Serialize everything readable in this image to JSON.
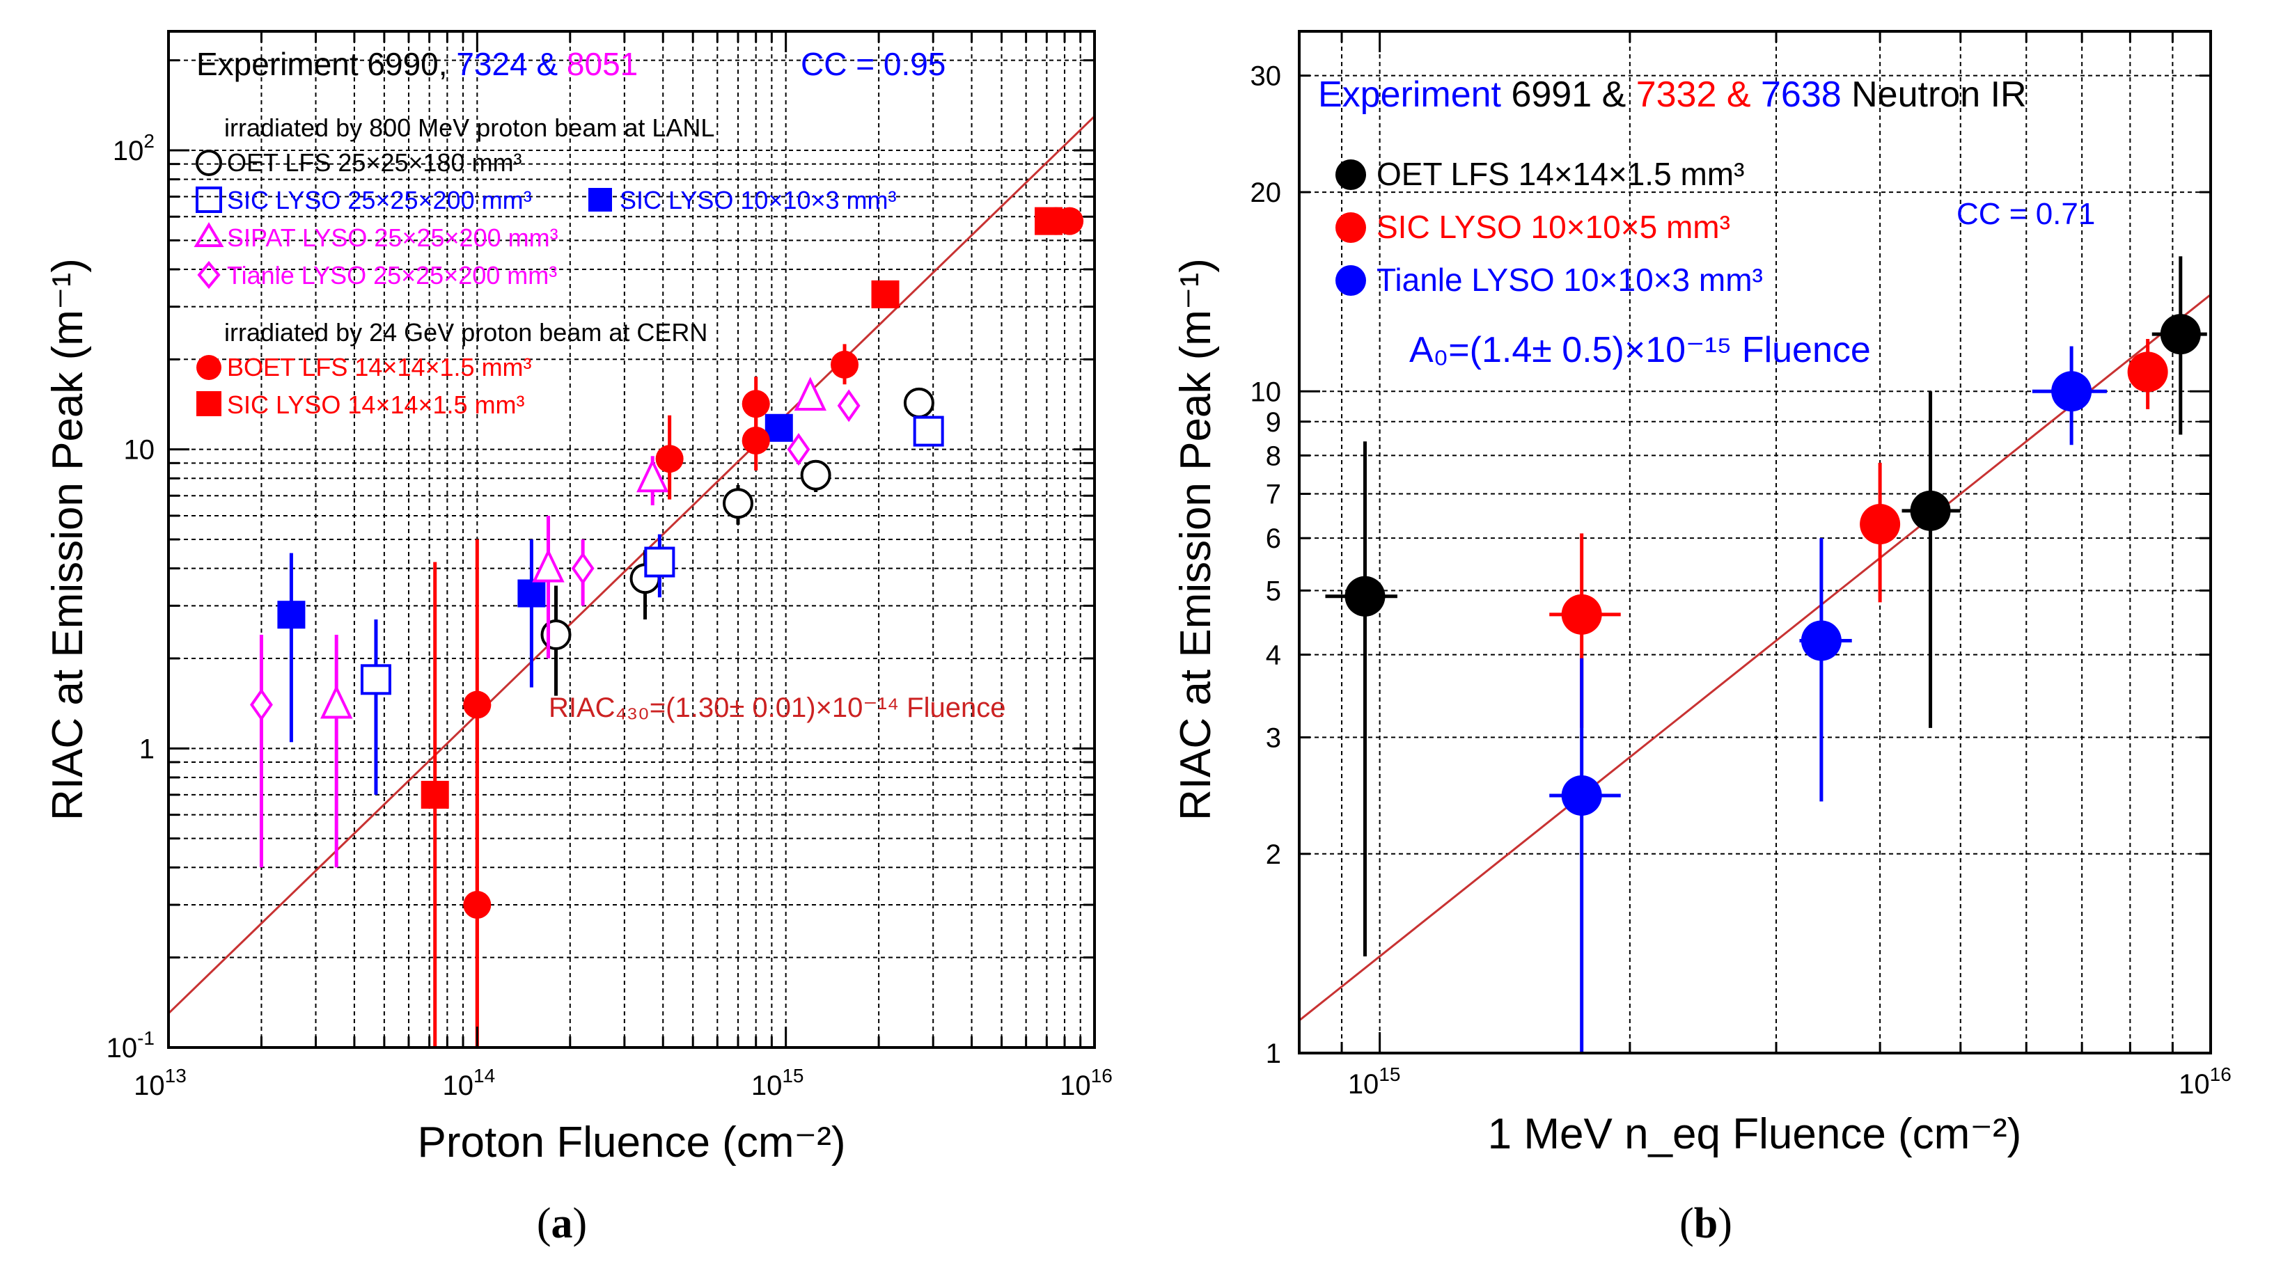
{
  "colors": {
    "black": "#000000",
    "red": "#ff0000",
    "blue": "#0000ff",
    "magenta": "#ff00ff",
    "fit_line": "#c83232",
    "dark_red": "#cc2222"
  },
  "panel_a": {
    "caption_letter": "a",
    "header": {
      "experiment": "Experiment 6990, ",
      "num2": "7324 & ",
      "num3": "8051",
      "cc": "CC = 0.95"
    },
    "section1": "irradiated by 800 MeV proton beam at LANL",
    "section2": "irradiated by 24 GeV proton beam at CERN",
    "legend": [
      {
        "marker": "circle-open",
        "color": "black",
        "label": "OET LFS  25×25×180 mm³"
      },
      {
        "marker": "square-open",
        "color": "blue",
        "label": "SIC LYSO  25×25×200 mm³"
      },
      {
        "marker": "square-filled",
        "color": "blue",
        "label": "SIC LYSO   10×10×3 mm³"
      },
      {
        "marker": "triangle-open",
        "color": "magenta",
        "label": "SIPAT LYSO  25×25×200 mm³"
      },
      {
        "marker": "diamond-open",
        "color": "magenta",
        "label": "Tianle LYSO  25×25×200 mm³"
      },
      {
        "marker": "circle-filled",
        "color": "red",
        "label": "BOET LFS  14×14×1.5 mm³"
      },
      {
        "marker": "square-filled",
        "color": "red",
        "label": "SIC LYSO   14×14×1.5 mm³"
      }
    ],
    "fit_label": "RIAC₄₃₀=(1.30± 0.01)×10⁻¹⁴ Fluence"
  },
  "panel_b": {
    "caption_letter": "b",
    "header": {
      "experiment": "Experiment ",
      "num1": "6991 & ",
      "num2": "7332 & ",
      "num3": "7638",
      "tail": "  Neutron IR"
    },
    "cc": "CC = 0.71",
    "legend": [
      {
        "marker": "circle-filled",
        "color": "black",
        "label": "OET LFS  14×14×1.5 mm³"
      },
      {
        "marker": "circle-filled",
        "color": "red",
        "label": "SIC LYSO  10×10×5 mm³"
      },
      {
        "marker": "circle-filled",
        "color": "blue",
        "label": "Tianle LYSO  10×10×3 mm³"
      }
    ],
    "fit_label": "A₀=(1.4± 0.5)×10⁻¹⁵ Fluence"
  },
  "chart_data": [
    {
      "type": "scatter",
      "xlabel": "Proton Fluence (cm⁻²)",
      "ylabel": "RIAC at Emission Peak (m⁻¹)",
      "x_scale": "log",
      "y_scale": "log",
      "xlim": [
        10000000000000.0,
        1e+16
      ],
      "ylim": [
        0.1,
        250
      ],
      "x_ticks": [
        "10¹³",
        "10¹⁴",
        "10¹⁵",
        "10¹⁶"
      ],
      "y_ticks": [
        "10⁻¹",
        "1",
        "10",
        "10²"
      ],
      "grid": true,
      "fit": {
        "slope": 1.3e-14,
        "color": "fit_line"
      },
      "series": [
        {
          "name": "OET LFS  25×25×180 mm³",
          "marker": "circle-open",
          "color": "black",
          "points": [
            [
              180000000000000.0,
              2.4,
              1.5,
              3.5
            ],
            [
              350000000000000.0,
              3.7,
              2.7,
              4.6
            ],
            [
              700000000000000.0,
              6.6,
              5.6,
              7.6
            ],
            [
              1250000000000000.0,
              8.2,
              7.2,
              9.2
            ],
            [
              2700000000000000.0,
              14.3,
              13.0,
              15.5
            ]
          ]
        },
        {
          "name": "SIC LYSO  25×25×200 mm³",
          "marker": "square-open",
          "color": "blue",
          "points": [
            [
              47000000000000.0,
              1.7,
              0.7,
              2.7
            ],
            [
              390000000000000.0,
              4.2,
              3.2,
              5.2
            ],
            [
              2900000000000000.0,
              11.5,
              10.5,
              12.5
            ]
          ]
        },
        {
          "name": "SIC LYSO   10×10×3 mm³",
          "marker": "square-filled",
          "color": "blue",
          "points": [
            [
              25000000000000.0,
              2.8,
              1.05,
              4.5
            ],
            [
              150000000000000.0,
              3.3,
              1.6,
              5.0
            ],
            [
              950000000000000.0,
              11.8,
              10.8,
              12.8
            ]
          ]
        },
        {
          "name": "SIPAT LYSO  25×25×200 mm³",
          "marker": "triangle-open",
          "color": "magenta",
          "points": [
            [
              35000000000000.0,
              1.4,
              0.4,
              2.4
            ],
            [
              170000000000000.0,
              4.0,
              2.0,
              6.0
            ],
            [
              370000000000000.0,
              8.0,
              6.5,
              9.5
            ],
            [
              1200000000000000.0,
              15.0,
              13.5,
              16.5
            ]
          ]
        },
        {
          "name": "Tianle LYSO  25×25×200 mm³",
          "marker": "diamond-open",
          "color": "magenta",
          "points": [
            [
              20000000000000.0,
              1.4,
              0.4,
              2.4
            ],
            [
              220000000000000.0,
              4.0,
              3.0,
              5.0
            ],
            [
              1100000000000000.0,
              10.0,
              9.0,
              11.0
            ],
            [
              1600000000000000.0,
              14.0,
              13.0,
              15.0
            ]
          ]
        },
        {
          "name": "BOET LFS  14×14×1.5 mm³",
          "marker": "circle-filled",
          "color": "red",
          "points": [
            [
              100000000000000.0,
              1.4,
              0.08,
              5.0
            ],
            [
              100000000000000.0,
              0.3,
              0.08,
              1.5
            ],
            [
              420000000000000.0,
              9.3,
              6.8,
              13.0
            ],
            [
              800000000000000.0,
              14.2,
              11.5,
              17.5
            ],
            [
              800000000000000.0,
              10.7,
              8.5,
              13.5
            ],
            [
              1550000000000000.0,
              19.2,
              16.5,
              22.5
            ],
            [
              7500000000000000.0,
              58.0,
              56.0,
              60.0
            ],
            [
              8300000000000000.0,
              58.0,
              56.0,
              60.0
            ]
          ]
        },
        {
          "name": "SIC LYSO   14×14×1.5 mm³",
          "marker": "square-filled",
          "color": "red",
          "points": [
            [
              73000000000000.0,
              0.7,
              0.08,
              4.2
            ],
            [
              2100000000000000.0,
              33.0,
              31.0,
              35.0
            ],
            [
              7100000000000000.0,
              58.0,
              56.0,
              60.0
            ]
          ]
        }
      ]
    },
    {
      "type": "scatter",
      "xlabel": "1 MeV n_eq Fluence (cm⁻²)",
      "ylabel": "RIAC at Emission Peak (m⁻¹)",
      "x_scale": "log",
      "y_scale": "log",
      "xlim": [
        800000000000000.0,
        1e+16
      ],
      "ylim": [
        1,
        35
      ],
      "x_ticks": [
        "10¹⁵",
        "10¹⁶"
      ],
      "y_ticks": [
        "1",
        "2",
        "3",
        "4",
        "5",
        "6",
        "7",
        "8",
        "9",
        "10",
        "20",
        "30"
      ],
      "grid": true,
      "fit": {
        "slope": 1.4e-15,
        "color": "fit_line"
      },
      "series": [
        {
          "name": "OET LFS  14×14×1.5 mm³",
          "marker": "circle-filled",
          "color": "black",
          "points": [
            [
              960000000000000.0,
              4.9,
              1.4,
              8.4,
              860000000000000.0,
              1050000000000000.0
            ],
            [
              4600000000000000.0,
              6.6,
              3.1,
              10.0,
              4250000000000000.0,
              5000000000000000.0
            ],
            [
              9200000000000000.0,
              12.2,
              8.6,
              16.0,
              8500000000000000.0,
              9900000000000000.0
            ]
          ]
        },
        {
          "name": "SIC LYSO  10×10×5 mm³",
          "marker": "circle-filled",
          "color": "red",
          "points": [
            [
              1750000000000000.0,
              4.6,
              3.1,
              6.1,
              1600000000000000.0,
              1950000000000000.0
            ],
            [
              4000000000000000.0,
              6.3,
              4.8,
              7.8,
              3800000000000000.0,
              4200000000000000.0
            ],
            [
              8400000000000000.0,
              10.7,
              9.4,
              12.0,
              8000000000000000.0,
              8800000000000000.0
            ]
          ]
        },
        {
          "name": "Tianle LYSO  10×10×3 mm³",
          "marker": "circle-filled",
          "color": "blue",
          "points": [
            [
              1750000000000000.0,
              2.45,
              1.0,
              3.95,
              1600000000000000.0,
              1950000000000000.0
            ],
            [
              3400000000000000.0,
              4.2,
              2.4,
              6.0,
              3200000000000000.0,
              3700000000000000.0
            ],
            [
              6800000000000000.0,
              10.0,
              8.3,
              11.7,
              6100000000000000.0,
              7500000000000000.0
            ]
          ]
        }
      ]
    }
  ]
}
